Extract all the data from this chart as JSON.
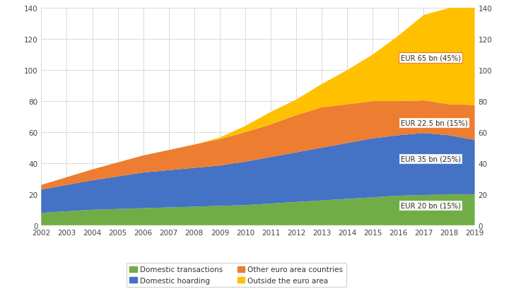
{
  "years": [
    2002,
    2003,
    2004,
    2005,
    2006,
    2007,
    2008,
    2009,
    2010,
    2011,
    2012,
    2013,
    2014,
    2015,
    2016,
    2017,
    2018,
    2019
  ],
  "domestic_transactions": [
    8,
    9,
    10,
    10.5,
    11,
    11.5,
    12,
    12.5,
    13,
    14,
    15,
    16,
    17,
    18,
    19,
    19.5,
    20,
    20
  ],
  "domestic_hoarding": [
    15,
    17,
    19,
    21,
    23,
    24,
    25,
    26,
    28,
    30,
    32,
    34,
    36,
    38,
    39,
    40,
    38,
    35
  ],
  "other_euro_area": [
    3,
    5,
    7,
    9,
    11,
    13,
    15,
    17,
    19,
    21,
    24,
    26,
    25,
    24,
    22,
    21,
    20,
    22.5
  ],
  "outside_euro_area": [
    0,
    0,
    0,
    0,
    0,
    0,
    0,
    1,
    4,
    8,
    10,
    15,
    22,
    30,
    42,
    55,
    62,
    65
  ],
  "colors": {
    "domestic_transactions": "#70ad47",
    "domestic_hoarding": "#4472c4",
    "other_euro_area": "#ed7d31",
    "outside_euro_area": "#ffc000"
  },
  "legend_labels": [
    "Domestic transactions",
    "Domestic hoarding",
    "Other euro area countries",
    "Outside the euro area"
  ],
  "ylim": [
    0,
    140
  ],
  "yticks": [
    0,
    20,
    40,
    60,
    80,
    100,
    120,
    140
  ],
  "background_color": "#ffffff",
  "grid_color": "#d9d9d9"
}
